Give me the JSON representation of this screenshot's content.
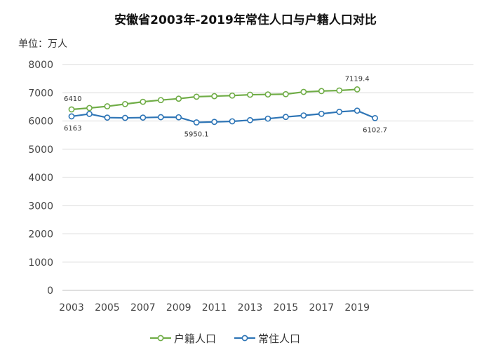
{
  "chart_data": {
    "type": "line",
    "title": "安徽省2003年-2019年常住人口与户籍人口对比",
    "unit_label": "单位：万人",
    "xlabel": "",
    "ylabel": "",
    "ylim": [
      0,
      8000
    ],
    "yticks": [
      0,
      1000,
      2000,
      3000,
      4000,
      5000,
      6000,
      7000,
      8000
    ],
    "xticks": [
      2003,
      2005,
      2007,
      2009,
      2011,
      2013,
      2015,
      2017,
      2019
    ],
    "grid": true,
    "legend": "bottom",
    "series": [
      {
        "name": "户籍人口",
        "color": "#70ad47",
        "x": [
          2003,
          2004,
          2005,
          2006,
          2007,
          2008,
          2009,
          2010,
          2011,
          2012,
          2013,
          2014,
          2015,
          2016,
          2017,
          2018,
          2019
        ],
        "values": [
          6410,
          6460,
          6520,
          6600,
          6680,
          6740,
          6790,
          6860,
          6880,
          6900,
          6930,
          6940,
          6950,
          7030,
          7060,
          7080,
          7119.4
        ],
        "labels": [
          {
            "x": 2003,
            "text": "6410"
          },
          {
            "x": 2019,
            "text": "7119.4"
          }
        ]
      },
      {
        "name": "常住人口",
        "color": "#2e75b6",
        "x": [
          2003,
          2004,
          2005,
          2006,
          2007,
          2008,
          2009,
          2010,
          2011,
          2012,
          2013,
          2014,
          2015,
          2016,
          2017,
          2018,
          2019,
          2020
        ],
        "values": [
          6163,
          6250,
          6120,
          6110,
          6120,
          6135,
          6131,
          5950.1,
          5968,
          5988,
          6030,
          6083,
          6144,
          6196,
          6255,
          6324,
          6366,
          6102.7
        ],
        "labels": [
          {
            "x": 2003,
            "text": "6163"
          },
          {
            "x": 2010,
            "text": "5950.1"
          },
          {
            "x": 2020,
            "text": "6102.7"
          }
        ]
      }
    ]
  }
}
